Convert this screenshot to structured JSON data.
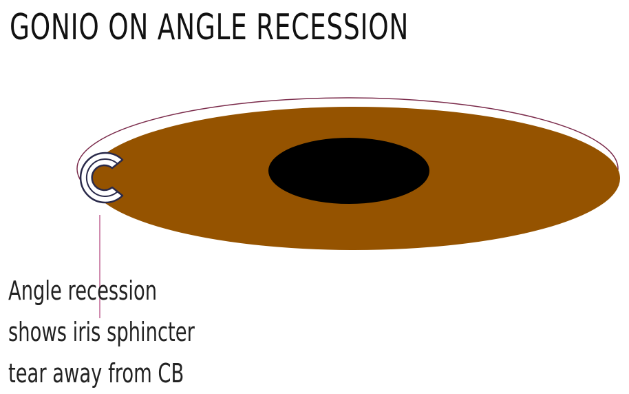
{
  "title": "GONIO ON ANGLE RECESSION",
  "colors": {
    "iris": "#955300",
    "pupil": "#000000",
    "outline": "#7a2a4a",
    "leader_line": "#b0407a",
    "marker_stroke": "#2a2a4a"
  },
  "marker": {
    "letter": "C",
    "icon": "c-shaped-marker-icon"
  },
  "caption": {
    "line1": "Angle recession",
    "line2": "shows iris sphincter",
    "line3": "tear away from CB"
  }
}
